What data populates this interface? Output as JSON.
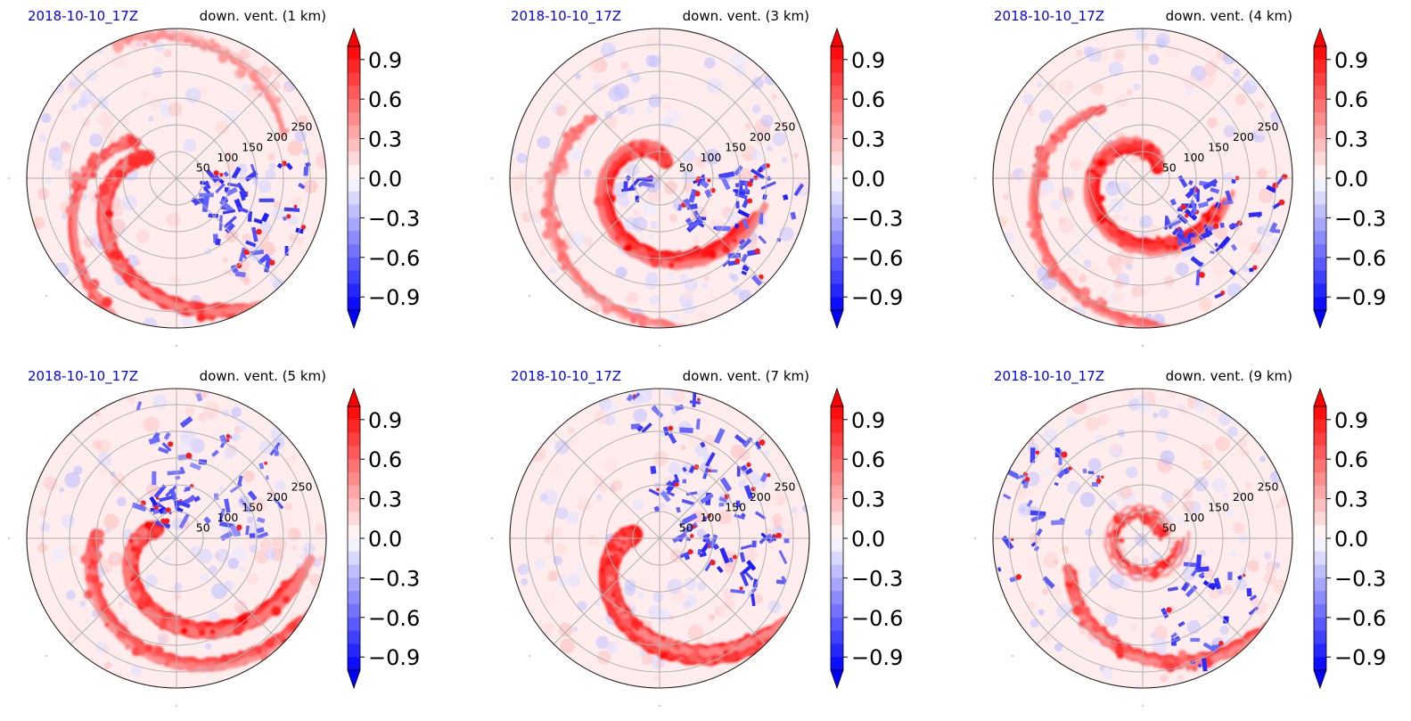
{
  "figure": {
    "colors": {
      "positive": "#ff0000",
      "negative": "#0000ff",
      "zero": "#ffffff",
      "label_left": "#0000ff",
      "grid": "#b0b0b0"
    }
  },
  "chart_data": [
    {
      "type": "heatmap",
      "projection": "polar",
      "title_left": "2018-10-10_17Z",
      "title_right": "down. vent. (1 km)",
      "r_ticks": [
        "50",
        "100",
        "150",
        "200",
        "250"
      ],
      "grid": true,
      "colormap": "bwr",
      "vmin": -1.0,
      "vmax": 1.0,
      "colorbar_ticks": [
        "0.9",
        "0.6",
        "0.3",
        "0.0",
        "−0.3",
        "−0.6",
        "−0.9"
      ],
      "colorbar_extend": "both",
      "dominant_pattern": "red spiral band to north-west, blue streaks to south-east"
    },
    {
      "type": "heatmap",
      "projection": "polar",
      "title_left": "2018-10-10_17Z",
      "title_right": "down. vent. (3 km)",
      "r_ticks": [
        "50",
        "100",
        "150",
        "200",
        "250"
      ],
      "grid": true,
      "colormap": "bwr",
      "vmin": -1.0,
      "vmax": 1.0,
      "colorbar_ticks": [
        "0.9",
        "0.6",
        "0.3",
        "0.0",
        "−0.3",
        "−0.6",
        "−0.9"
      ],
      "colorbar_extend": "both",
      "dominant_pattern": "red inner spiral, blue scatter to south-east"
    },
    {
      "type": "heatmap",
      "projection": "polar",
      "title_left": "2018-10-10_17Z",
      "title_right": "down. vent. (4 km)",
      "r_ticks": [
        "50",
        "100",
        "150",
        "200",
        "250"
      ],
      "grid": true,
      "colormap": "bwr",
      "vmin": -1.0,
      "vmax": 1.0,
      "colorbar_ticks": [
        "0.9",
        "0.6",
        "0.3",
        "0.0",
        "−0.3",
        "−0.6",
        "−0.9"
      ],
      "colorbar_extend": "both",
      "dominant_pattern": "red inner core ring, blue streaks to south-east"
    },
    {
      "type": "heatmap",
      "projection": "polar",
      "title_left": "2018-10-10_17Z",
      "title_right": "down. vent. (5 km)",
      "r_ticks": [
        "50",
        "100",
        "150",
        "200",
        "250"
      ],
      "grid": true,
      "colormap": "bwr",
      "vmin": -1.0,
      "vmax": 1.0,
      "colorbar_ticks": [
        "0.9",
        "0.6",
        "0.3",
        "0.0",
        "−0.3",
        "−0.6",
        "−0.9"
      ],
      "colorbar_extend": "both",
      "dominant_pattern": "broad red bands west and south-west, blue to north and east"
    },
    {
      "type": "heatmap",
      "projection": "polar",
      "title_left": "2018-10-10_17Z",
      "title_right": "down. vent. (7 km)",
      "r_ticks": [
        "50",
        "100",
        "150",
        "200",
        "250"
      ],
      "grid": true,
      "colormap": "bwr",
      "vmin": -1.0,
      "vmax": 1.0,
      "colorbar_ticks": [
        "0.9",
        "0.6",
        "0.3",
        "0.0",
        "−0.3",
        "−0.6",
        "−0.9"
      ],
      "colorbar_extend": "both",
      "dominant_pattern": "strong red band west to south, blue spots north and east"
    },
    {
      "type": "heatmap",
      "projection": "polar",
      "title_left": "2018-10-10_17Z",
      "title_right": "down. vent. (9 km)",
      "r_ticks": [
        "50",
        "100",
        "150",
        "200",
        "250"
      ],
      "grid": true,
      "colormap": "bwr",
      "vmin": -1.0,
      "vmax": 1.0,
      "colorbar_ticks": [
        "0.9",
        "0.6",
        "0.3",
        "0.0",
        "−0.3",
        "−0.6",
        "−0.9"
      ],
      "colorbar_extend": "both",
      "dominant_pattern": "red arc south-west, blue band west, small red core ring"
    }
  ]
}
